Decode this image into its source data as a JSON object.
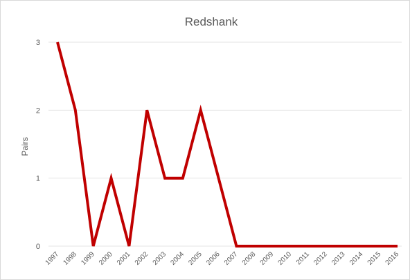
{
  "chart_data": {
    "type": "line",
    "title": "Redshank",
    "xlabel": "",
    "ylabel": "Pairs",
    "categories": [
      "1997",
      "1998",
      "1999",
      "2000",
      "2001",
      "2002",
      "2003",
      "2004",
      "2005",
      "2006",
      "2007",
      "2008",
      "2009",
      "2010",
      "2011",
      "2012",
      "2013",
      "2014",
      "2015",
      "2016"
    ],
    "series": [
      {
        "values": [
          3,
          2,
          0,
          1,
          0,
          2,
          1,
          1,
          2,
          1,
          0,
          0,
          0,
          0,
          0,
          0,
          0,
          0,
          0,
          0
        ]
      }
    ],
    "yticks": [
      "0",
      "1",
      "2",
      "3"
    ],
    "ylim": [
      0,
      3
    ],
    "grid": true,
    "colors": {
      "series": "#c00000",
      "grid": "#e3e3e3",
      "text": "#595959"
    }
  }
}
